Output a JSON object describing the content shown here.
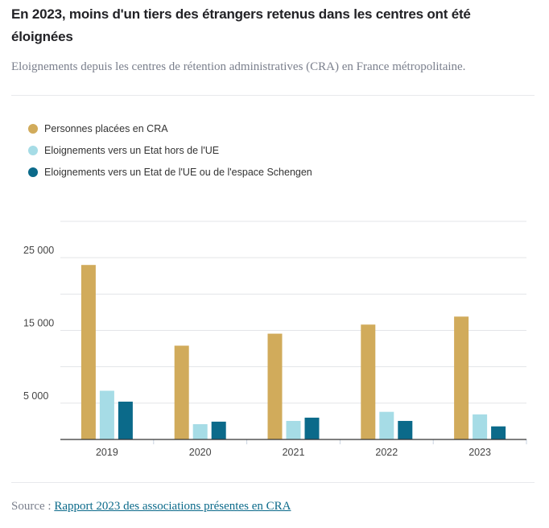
{
  "header": {
    "title": "En 2023, moins d'un tiers des étrangers retenus dans les centres ont été éloignées",
    "subtitle": "Eloignements depuis les centres de rétention administratives (CRA) en France métropolitaine."
  },
  "footer": {
    "source_label": "Source :",
    "source_link": "Rapport 2023 des associations présentes en CRA"
  },
  "chart_data": {
    "type": "bar",
    "title": "En 2023, moins d'un tiers des étrangers retenus dans les centres ont été éloignées",
    "subtitle": "Eloignements depuis les centres de rétention administratives (CRA) en France métropolitaine.",
    "xlabel": "",
    "ylabel": "",
    "categories": [
      "2019",
      "2020",
      "2021",
      "2022",
      "2023"
    ],
    "series": [
      {
        "name": "Personnes placées en CRA",
        "color": "#d1ab5b",
        "values": [
          24000,
          12900,
          14550,
          15800,
          16900
        ]
      },
      {
        "name": "Eloignements vers un Etat hors de l'UE",
        "color": "#a6dce6",
        "values": [
          6700,
          2100,
          2550,
          3800,
          3450
        ]
      },
      {
        "name": "Eloignements vers un Etat de l'UE ou de l'espace Schengen",
        "color": "#0b6a8a",
        "values": [
          5200,
          2450,
          3000,
          2550,
          1800
        ]
      }
    ],
    "ylim": [
      0,
      30000
    ],
    "yticks": [
      0,
      5000,
      10000,
      15000,
      20000,
      25000,
      30000
    ],
    "ytick_labels": [
      {
        "value": 5000,
        "label": "5 000"
      },
      {
        "value": 15000,
        "label": "15 000"
      },
      {
        "value": 25000,
        "label": "25 000"
      }
    ],
    "grid": true,
    "legend_position": "top-left"
  }
}
